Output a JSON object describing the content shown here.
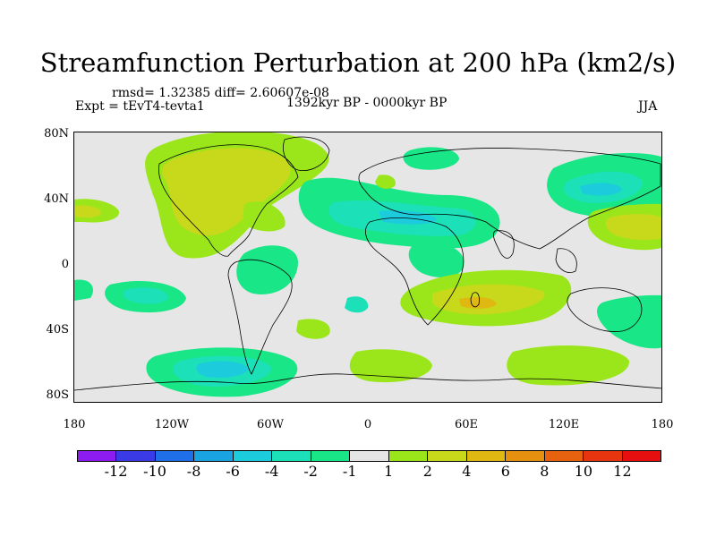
{
  "title": "Streamfunction Perturbation at 200 hPa (km2/s)",
  "stats": "rmsd= 1.32385 diff= 2.60607e-08",
  "expt": "Expt = tEvT4-tevta1",
  "period": "1392kyr BP - 0000kyr BP",
  "season": "JJA",
  "y_ticks": [
    "80N",
    "40N",
    "0",
    "40S",
    "80S"
  ],
  "x_ticks": [
    "180",
    "120W",
    "60W",
    "0",
    "60E",
    "120E",
    "180"
  ],
  "colorbar": {
    "colors": [
      "#8c1cf0",
      "#3a3ae6",
      "#1f6fe8",
      "#19a3e0",
      "#1dccdc",
      "#1ce0b8",
      "#19e687",
      "#e6e6e6",
      "#9be61a",
      "#c8d81a",
      "#e0b812",
      "#e6900f",
      "#e6620f",
      "#e6350f",
      "#e60f0f"
    ],
    "labels": [
      "-12",
      "-10",
      "-8",
      "-6",
      "-4",
      "-2",
      "-1",
      "1",
      "2",
      "4",
      "6",
      "8",
      "10",
      "12"
    ]
  },
  "contour_colors": {
    "neg1": "#19e687",
    "neg2": "#1ce0b8",
    "neg4": "#1dccdc",
    "pos1": "#9be61a",
    "pos2": "#c8d81a",
    "pos4": "#e0b812"
  }
}
